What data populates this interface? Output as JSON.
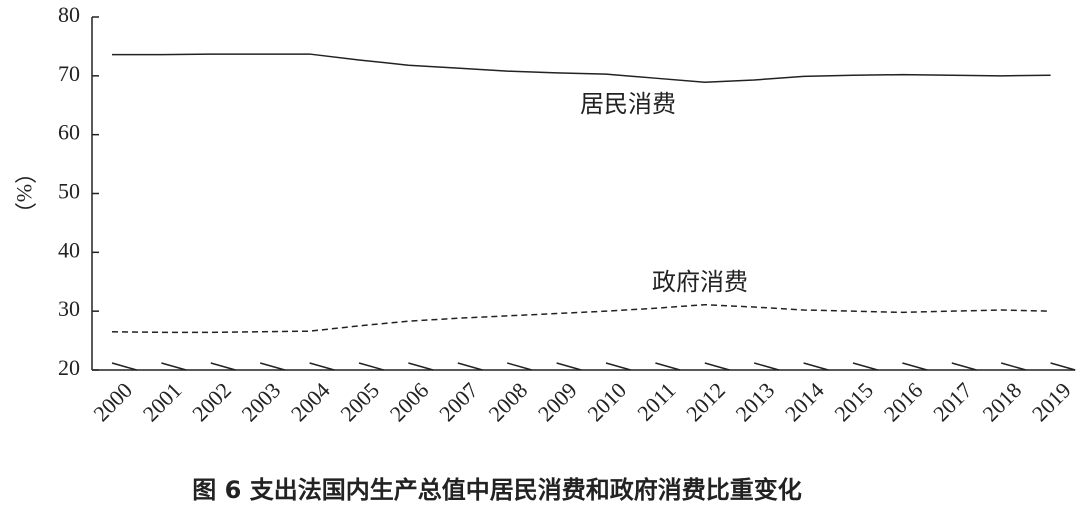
{
  "chart_data": {
    "type": "line",
    "title": "图 6  支出法国内生产总值中居民消费和政府消费比重变化",
    "y_label": "（%）",
    "categories": [
      "2000",
      "2001",
      "2002",
      "2003",
      "2004",
      "2005",
      "2006",
      "2007",
      "2008",
      "2009",
      "2010",
      "2011",
      "2012",
      "2013",
      "2014",
      "2015",
      "2016",
      "2017",
      "2018",
      "2019"
    ],
    "series": [
      {
        "name": "居民消费",
        "color": "#222222",
        "style": "solid",
        "values": [
          73.6,
          73.6,
          73.7,
          73.7,
          73.7,
          72.7,
          71.8,
          71.3,
          70.8,
          70.5,
          70.3,
          69.6,
          68.9,
          69.3,
          69.9,
          70.1,
          70.2,
          70.1,
          70.0,
          70.1
        ]
      },
      {
        "name": "政府消费",
        "color": "#222222",
        "style": "dashed",
        "values": [
          26.5,
          26.4,
          26.4,
          26.5,
          26.6,
          27.5,
          28.3,
          28.8,
          29.2,
          29.6,
          30.0,
          30.5,
          31.1,
          30.7,
          30.2,
          30.0,
          29.8,
          30.0,
          30.2,
          30.0
        ]
      }
    ],
    "ylim": [
      20,
      80
    ],
    "yticks": [
      20,
      30,
      40,
      50,
      60,
      70,
      80
    ]
  }
}
